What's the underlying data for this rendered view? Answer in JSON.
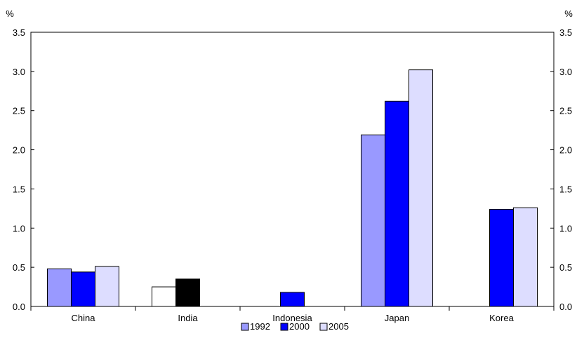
{
  "chart_data": {
    "type": "bar",
    "categories": [
      "China",
      "India",
      "Indonesia",
      "Japan",
      "Korea"
    ],
    "series": [
      {
        "name": "1992",
        "color": "#9999ff",
        "values": [
          0.48,
          null,
          null,
          2.19,
          null
        ]
      },
      {
        "name": "2000",
        "color": "#0000ff",
        "values": [
          0.44,
          null,
          0.18,
          2.62,
          1.24
        ]
      },
      {
        "name": "2005",
        "color": "#ddddff",
        "values": [
          0.51,
          null,
          null,
          3.02,
          1.26
        ]
      }
    ],
    "extra_bars": [
      {
        "category": "India",
        "slot": 0,
        "value": 0.25,
        "color": "#ffffff"
      },
      {
        "category": "India",
        "slot": 1,
        "value": 0.35,
        "color": "#000000"
      }
    ],
    "y_unit_left": "%",
    "y_unit_right": "%",
    "ylim": [
      0,
      3.5
    ],
    "yticks": [
      "0.0",
      "0.5",
      "1.0",
      "1.5",
      "2.0",
      "2.5",
      "3.0",
      "3.5"
    ],
    "grid": false,
    "legend_position": "bottom-center"
  }
}
